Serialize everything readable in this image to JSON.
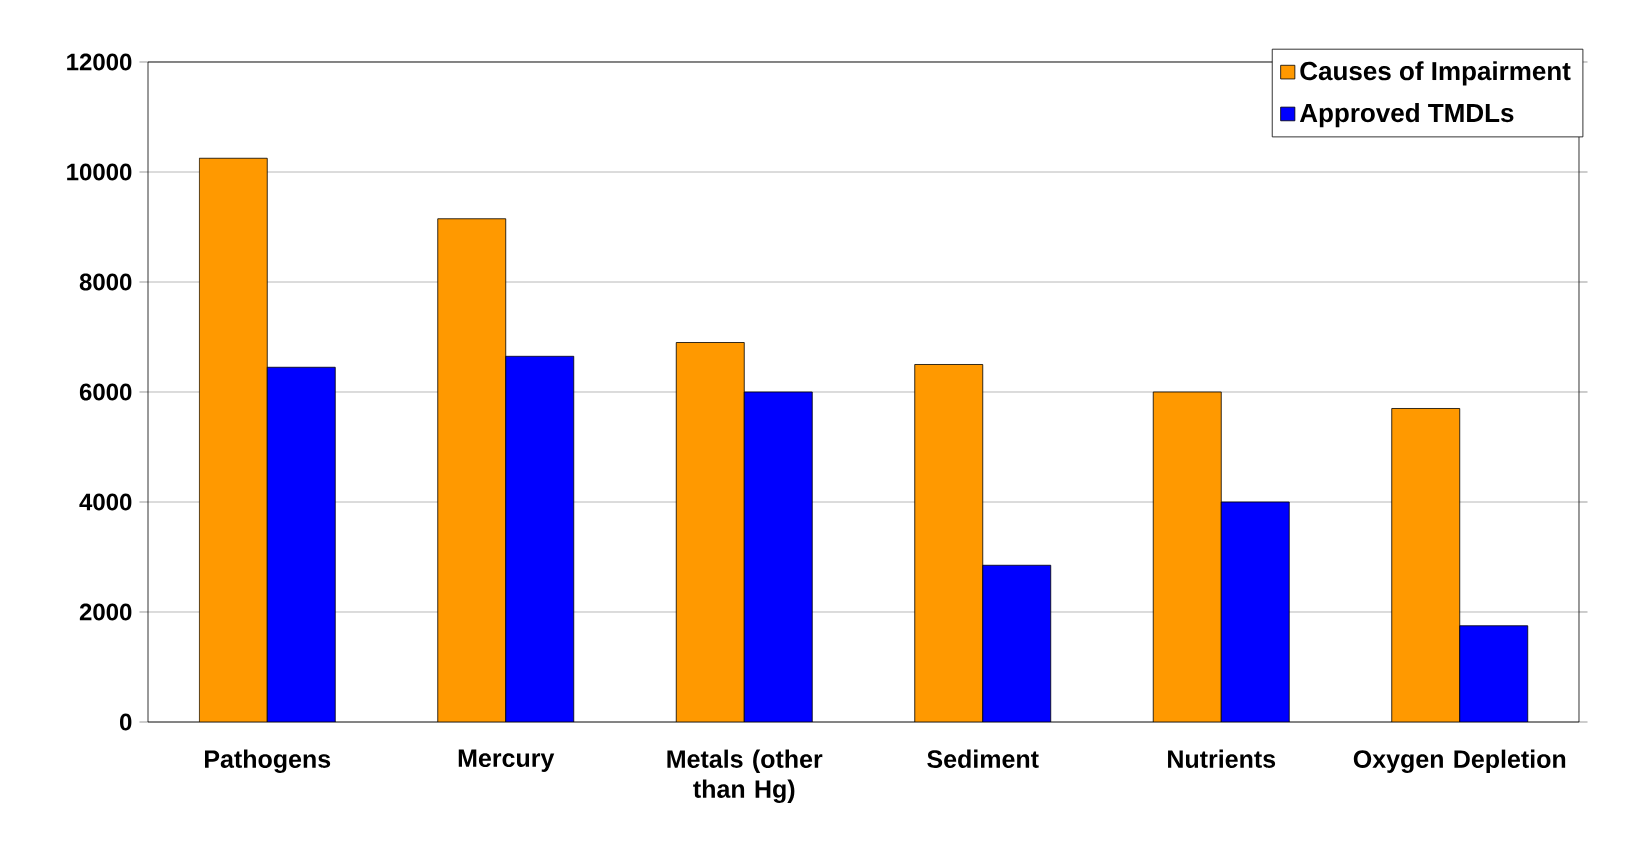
{
  "chart_data": {
    "type": "bar",
    "categories": [
      "Pathogens",
      "Mercury",
      "Metals (other than Hg)",
      "Sediment",
      "Nutrients",
      "Oxygen Depletion"
    ],
    "series": [
      {
        "name": "Causes of Impairment",
        "color": "#ff9900",
        "values": [
          10250,
          9150,
          6900,
          6500,
          6000,
          5700
        ]
      },
      {
        "name": "Approved TMDLs",
        "color": "#0000ff",
        "values": [
          6450,
          6650,
          6000,
          2850,
          4000,
          1750
        ]
      }
    ],
    "ylim": [
      0,
      12000
    ],
    "yticks": [
      0,
      2000,
      4000,
      6000,
      8000,
      10000,
      12000
    ],
    "grid": "y",
    "legend": "top right"
  }
}
